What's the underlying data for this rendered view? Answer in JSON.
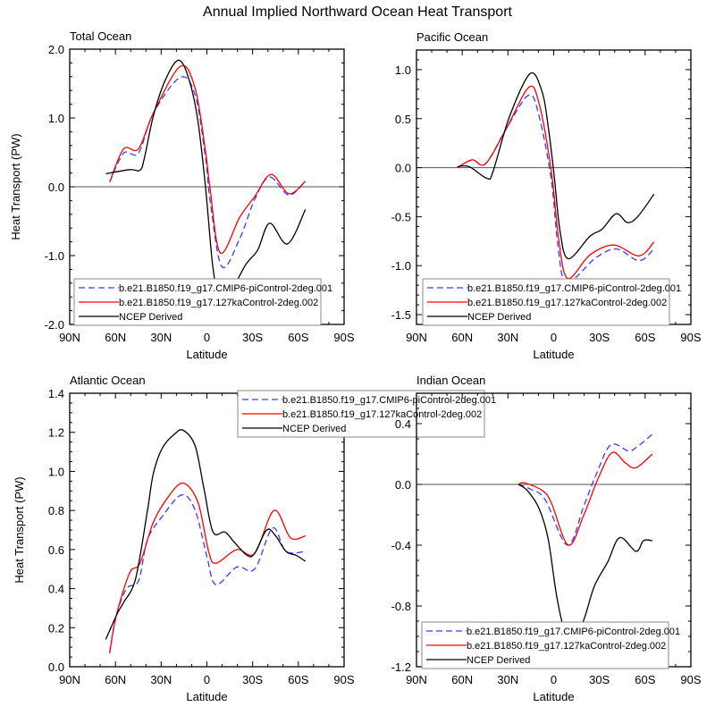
{
  "title": "Annual Implied Northward Ocean Heat Transport",
  "legend_labels": [
    "b.e21.B1850.f19_g17.CMIP6-piControl-2deg.001",
    "b.e21.B1850.f19_g17.127kaControl-2deg.002",
    "NCEP Derived"
  ],
  "colors": {
    "cmip6": "#3a3aff",
    "ka127": "#ff0000",
    "ncep": "#000000"
  },
  "chart_data": [
    {
      "type": "line",
      "title": "Total Ocean",
      "xlabel": "Latitude",
      "ylabel": "Heat Transport (PW)",
      "xlim": [
        90,
        -90
      ],
      "xtick_labels": [
        "90N",
        "60N",
        "30N",
        "0",
        "30S",
        "60S",
        "90S"
      ],
      "ylim": [
        -2.0,
        2.0
      ],
      "ytick_values": [
        2.0,
        1.0,
        0.0,
        -1.0,
        -2.0
      ],
      "ytick_labels": [
        "2.0",
        "1.0",
        "0.0",
        "-1.0",
        "-2.0"
      ],
      "legend_position": "bottom-left",
      "series": [
        {
          "name": "b.e21.B1850.f19_g17.CMIP6-piControl-2deg.001",
          "lat": [
            63.8,
            54.6,
            44.9,
            35.1,
            17.5,
            7.7,
            0.9,
            -2.0,
            -9.8,
            -21.6,
            -31.4,
            -41.2,
            -53.8,
            -64.6
          ],
          "values": [
            0.07,
            0.49,
            0.49,
            1.07,
            1.59,
            1.33,
            0.42,
            -0.18,
            -1.16,
            -0.75,
            -0.18,
            0.14,
            -0.12,
            0.08
          ]
        },
        {
          "name": "b.e21.B1850.f19_g17.127kaControl-2deg.002",
          "lat": [
            63.8,
            54.6,
            44.9,
            35.1,
            17.5,
            7.7,
            0.9,
            -2.0,
            -8.8,
            -21.6,
            -31.4,
            -42.1,
            -53.8,
            -64.6
          ],
          "values": [
            0.07,
            0.55,
            0.55,
            1.07,
            1.75,
            1.43,
            0.51,
            -0.01,
            -0.96,
            -0.44,
            -0.14,
            0.18,
            -0.1,
            0.08
          ]
        },
        {
          "name": "NCEP Derived",
          "lat": [
            66.3,
            50.7,
            43.9,
            41.0,
            35.1,
            27.3,
            18.5,
            11.6,
            5.8,
            0.9,
            -4.0,
            -8.8,
            -15.7,
            -25.5,
            -33.3,
            -41.2,
            -52.9,
            -64.6
          ],
          "values": [
            0.19,
            0.25,
            0.24,
            0.42,
            1.03,
            1.55,
            1.84,
            1.55,
            0.94,
            -0.01,
            -1.18,
            -1.63,
            -1.52,
            -1.13,
            -0.92,
            -0.53,
            -0.83,
            -0.33
          ]
        }
      ]
    },
    {
      "type": "line",
      "title": "Pacific Ocean",
      "xlabel": "Latitude",
      "ylabel": "",
      "xlim": [
        90,
        -90
      ],
      "xtick_labels": [
        "90N",
        "60N",
        "30N",
        "0",
        "30S",
        "60S",
        "90S"
      ],
      "ylim": [
        -1.6,
        1.2
      ],
      "ytick_values": [
        1.0,
        0.5,
        0.0,
        -0.5,
        -1.0,
        -1.5
      ],
      "ytick_labels": [
        "1.0",
        "0.5",
        "0.0",
        "-0.5",
        "-1.0",
        "-1.5"
      ],
      "legend_position": "bottom-left",
      "series": [
        {
          "name": "b.e21.B1850.f19_g17.CMIP6-piControl-2deg.001",
          "lat": [
            63.2,
            53.5,
            44.7,
            31.0,
            16.3,
            9.5,
            1.6,
            -2.3,
            -7.2,
            -15.9,
            -27.7,
            -41.3,
            -56.0,
            -65.8
          ],
          "values": [
            0.0,
            0.08,
            0.04,
            0.4,
            0.74,
            0.52,
            -0.12,
            -0.73,
            -1.19,
            -1.1,
            -0.92,
            -0.83,
            -0.95,
            -0.83
          ]
        },
        {
          "name": "b.e21.B1850.f19_g17.127kaControl-2deg.002",
          "lat": [
            63.2,
            53.5,
            44.7,
            31.0,
            16.3,
            9.5,
            1.6,
            -3.3,
            -9.2,
            -23.8,
            -39.4,
            -56.0,
            -65.8
          ],
          "values": [
            0.0,
            0.08,
            0.04,
            0.4,
            0.82,
            0.65,
            -0.03,
            -0.73,
            -1.13,
            -0.89,
            -0.79,
            -0.9,
            -0.76
          ]
        },
        {
          "name": "NCEP Derived",
          "lat": [
            63.2,
            55.4,
            43.7,
            39.8,
            29.0,
            15.4,
            7.5,
            3.7,
            -0.2,
            -4.1,
            -9.6,
            -23.8,
            -31.6,
            -41.0,
            -48.3,
            -55.1,
            -65.8
          ],
          "values": [
            0.01,
            0.01,
            -0.11,
            -0.04,
            0.52,
            0.96,
            0.77,
            0.43,
            -0.06,
            -0.64,
            -0.93,
            -0.7,
            -0.63,
            -0.47,
            -0.56,
            -0.5,
            -0.27
          ]
        }
      ]
    },
    {
      "type": "line",
      "title": "Atlantic Ocean",
      "xlabel": "Latitude",
      "ylabel": "Heat Transport (PW)",
      "xlim": [
        90,
        -90
      ],
      "xtick_labels": [
        "90N",
        "60N",
        "30N",
        "0",
        "30S",
        "60S",
        "90S"
      ],
      "ylim": [
        0.0,
        1.4
      ],
      "ytick_values": [
        1.4,
        1.2,
        1.0,
        0.8,
        0.6,
        0.4,
        0.2,
        0.0
      ],
      "ytick_labels": [
        "1.4",
        "1.2",
        "1.0",
        "0.8",
        "0.6",
        "0.4",
        "0.2",
        "0.0"
      ],
      "legend_position": "top-right",
      "series": [
        {
          "name": "b.e21.B1850.f19_g17.CMIP6-piControl-2deg.001",
          "lat": [
            63.8,
            59.5,
            52.7,
            44.8,
            39.0,
            29.2,
            16.5,
            7.7,
            -0.1,
            -5.9,
            -19.6,
            -31.3,
            -43.1,
            -51.9,
            -64.6
          ],
          "values": [
            0.07,
            0.26,
            0.4,
            0.44,
            0.65,
            0.77,
            0.88,
            0.8,
            0.56,
            0.42,
            0.51,
            0.5,
            0.71,
            0.59,
            0.59
          ]
        },
        {
          "name": "b.e21.B1850.f19_g17.127kaControl-2deg.002",
          "lat": [
            63.8,
            59.5,
            50.7,
            43.9,
            35.1,
            25.3,
            15.5,
            5.8,
            -1.1,
            -5.9,
            -19.6,
            -31.3,
            -44.1,
            -54.8,
            -64.6
          ],
          "values": [
            0.07,
            0.26,
            0.48,
            0.53,
            0.74,
            0.87,
            0.94,
            0.84,
            0.59,
            0.53,
            0.6,
            0.58,
            0.8,
            0.66,
            0.67
          ]
        },
        {
          "name": "NCEP Derived",
          "lat": [
            66.4,
            58.9,
            54.6,
            46.8,
            39.0,
            35.1,
            29.2,
            21.4,
            15.5,
            7.7,
            1.9,
            -4.0,
            -11.8,
            -17.7,
            -26.4,
            -31.3,
            -39.2,
            -45.1,
            -51.9,
            -58.7,
            -64.6
          ],
          "values": [
            0.14,
            0.27,
            0.33,
            0.45,
            0.8,
            0.99,
            1.12,
            1.19,
            1.21,
            1.13,
            0.91,
            0.69,
            0.69,
            0.64,
            0.57,
            0.58,
            0.7,
            0.67,
            0.59,
            0.57,
            0.54
          ]
        }
      ]
    },
    {
      "type": "line",
      "title": "Indian Ocean",
      "xlabel": "Latitude",
      "ylabel": "",
      "xlim": [
        90,
        -90
      ],
      "xtick_labels": [
        "90N",
        "60N",
        "30N",
        "0",
        "30S",
        "60S",
        "90S"
      ],
      "ylim": [
        -1.2,
        0.6
      ],
      "ytick_values": [
        0.4,
        0.0,
        -0.4,
        -0.8,
        -1.2
      ],
      "ytick_labels": [
        "0.4",
        "0.0",
        "-0.4",
        "-0.8",
        "-1.2"
      ],
      "legend_position": "bottom-left",
      "series": [
        {
          "name": "b.e21.B1850.f19_g17.CMIP6-piControl-2deg.001",
          "lat": [
            23.2,
            15.4,
            5.6,
            -9.1,
            -19.8,
            -27.7,
            -37.4,
            -49.1,
            -55.0,
            -64.8
          ],
          "values": [
            0.0,
            -0.03,
            -0.1,
            -0.4,
            -0.14,
            0.06,
            0.26,
            0.22,
            0.25,
            0.33
          ]
        },
        {
          "name": "b.e21.B1850.f19_g17.127kaControl-2deg.002",
          "lat": [
            23.2,
            19.2,
            7.5,
            1.6,
            -9.7,
            -19.8,
            -29.6,
            -38.4,
            -47.2,
            -54.0,
            -64.8
          ],
          "values": [
            0.0,
            0.01,
            -0.04,
            -0.12,
            -0.4,
            -0.2,
            0.05,
            0.21,
            0.14,
            0.11,
            0.2
          ]
        },
        {
          "name": "NCEP Derived",
          "lat": [
            23.2,
            17.3,
            9.5,
            3.6,
            -2.2,
            -8.1,
            -12.0,
            -19.8,
            -26.7,
            -35.5,
            -43.3,
            -54.0,
            -58.9,
            -64.8
          ],
          "values": [
            0.0,
            -0.04,
            -0.16,
            -0.36,
            -0.75,
            -1.0,
            -1.05,
            -0.89,
            -0.67,
            -0.51,
            -0.35,
            -0.44,
            -0.37,
            -0.37
          ]
        }
      ]
    }
  ]
}
